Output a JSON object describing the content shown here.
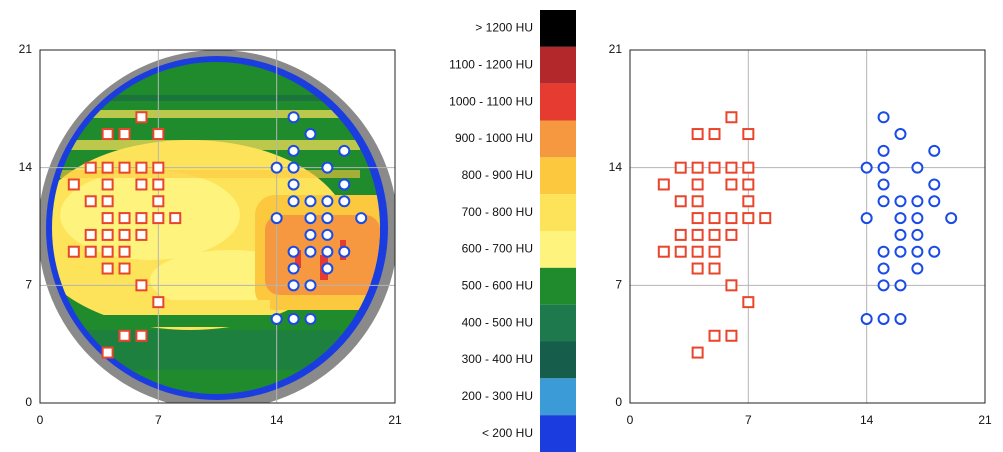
{
  "chart_data": [
    {
      "type": "scatter",
      "xlim": [
        0,
        21
      ],
      "ylim": [
        0,
        21
      ],
      "xticks": [
        0,
        7,
        14,
        21
      ],
      "yticks": [
        0,
        7,
        14,
        21
      ],
      "grid": true,
      "colorbar": [
        {
          "label": "> 1200 HU",
          "color": "#000000"
        },
        {
          "label": "1100 - 1200 HU",
          "color": "#b3282b"
        },
        {
          "label": "1000 - 1100 HU",
          "color": "#e63b30"
        },
        {
          "label": "900 - 1000 HU",
          "color": "#f5983f"
        },
        {
          "label": "800 - 900 HU",
          "color": "#fbc83e"
        },
        {
          "label": "700 - 800 HU",
          "color": "#fde35a"
        },
        {
          "label": "600 - 700 HU",
          "color": "#fef37c"
        },
        {
          "label": "500 - 600 HU",
          "color": "#1f8b2c"
        },
        {
          "label": "400 - 500 HU",
          "color": "#1e7a4c"
        },
        {
          "label": "300 - 400 HU",
          "color": "#165e4b"
        },
        {
          "label": "200 - 300 HU",
          "color": "#3a9bd7"
        },
        {
          "label": "< 200 HU",
          "color": "#1b3de0"
        }
      ],
      "series": [
        {
          "color": "#e8452c",
          "marker": "square",
          "x": [
            6,
            4,
            5,
            7,
            3,
            4,
            5,
            6,
            7,
            2,
            4,
            6,
            7,
            3,
            4,
            7,
            4,
            5,
            6,
            7,
            8,
            3,
            4,
            5,
            6,
            2,
            3,
            4,
            5,
            4,
            5,
            6,
            7,
            5,
            6,
            4
          ],
          "values": [
            17,
            16,
            16,
            16,
            14,
            14,
            14,
            14,
            14,
            13,
            13,
            13,
            13,
            12,
            12,
            12,
            11,
            11,
            11,
            11,
            11,
            10,
            10,
            10,
            10,
            9,
            9,
            9,
            9,
            8,
            8,
            7,
            6,
            4,
            4,
            3
          ]
        },
        {
          "color": "#1a4be6",
          "marker": "circle",
          "x": [
            15,
            16,
            15,
            18,
            14,
            15,
            17,
            15,
            18,
            15,
            16,
            17,
            18,
            14,
            16,
            17,
            19,
            16,
            17,
            15,
            16,
            17,
            18,
            15,
            17,
            15,
            16,
            14,
            15,
            16
          ],
          "values": [
            17,
            16,
            15,
            15,
            14,
            14,
            14,
            13,
            13,
            12,
            12,
            12,
            12,
            11,
            11,
            11,
            11,
            10,
            10,
            9,
            9,
            9,
            9,
            8,
            8,
            7,
            7,
            5,
            5,
            5
          ]
        }
      ]
    },
    {
      "type": "scatter",
      "xlim": [
        0,
        21
      ],
      "ylim": [
        0,
        21
      ],
      "xticks": [
        0,
        7,
        14,
        21
      ],
      "yticks": [
        0,
        7,
        14,
        21
      ],
      "grid": true,
      "series": [
        {
          "color": "#e8452c",
          "marker": "square",
          "x": [
            6,
            4,
            5,
            7,
            3,
            4,
            5,
            6,
            7,
            2,
            4,
            6,
            7,
            3,
            4,
            7,
            4,
            5,
            6,
            7,
            8,
            3,
            4,
            5,
            6,
            2,
            3,
            4,
            5,
            4,
            5,
            6,
            7,
            5,
            6,
            4
          ],
          "values": [
            17,
            16,
            16,
            16,
            14,
            14,
            14,
            14,
            14,
            13,
            13,
            13,
            13,
            12,
            12,
            12,
            11,
            11,
            11,
            11,
            11,
            10,
            10,
            10,
            10,
            9,
            9,
            9,
            9,
            8,
            8,
            7,
            6,
            4,
            4,
            3
          ]
        },
        {
          "color": "#1a4be6",
          "marker": "circle",
          "x": [
            15,
            16,
            15,
            18,
            14,
            15,
            17,
            15,
            18,
            15,
            16,
            17,
            18,
            14,
            16,
            17,
            19,
            16,
            17,
            15,
            16,
            17,
            18,
            15,
            17,
            15,
            16,
            14,
            15,
            16
          ],
          "values": [
            17,
            16,
            15,
            15,
            14,
            14,
            14,
            13,
            13,
            12,
            12,
            12,
            12,
            11,
            11,
            11,
            11,
            10,
            10,
            9,
            9,
            9,
            9,
            8,
            8,
            7,
            7,
            5,
            5,
            5
          ]
        }
      ]
    }
  ]
}
